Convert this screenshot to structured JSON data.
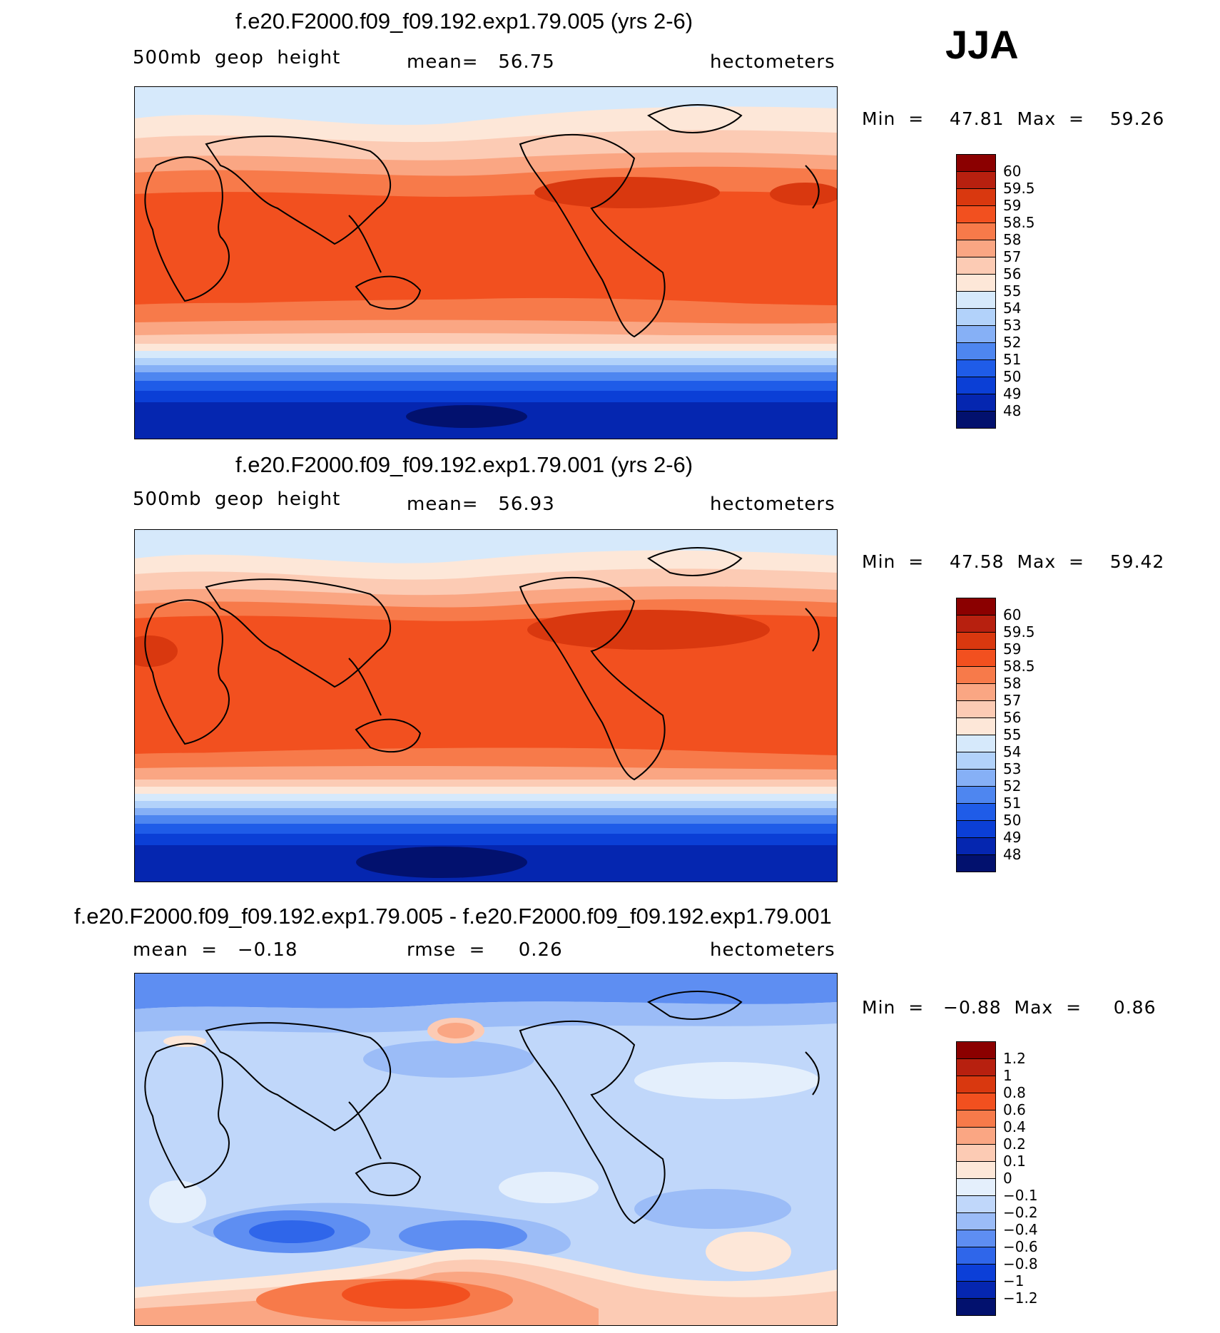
{
  "season": "JJA",
  "panels": [
    {
      "title": "f.e20.F2000.f09_f09.192.exp1.79.005 (yrs 2-6)",
      "subtitle_left": "500mb  geop  height",
      "subtitle_center": "mean=   56.75",
      "units": "hectometers",
      "min_max": "Min  =    47.81  Max  =    59.26",
      "colorbar": {
        "labels": [
          "60",
          "59.5",
          "59",
          "58.5",
          "58",
          "57",
          "56",
          "55",
          "54",
          "53",
          "52",
          "51",
          "50",
          "49",
          "48"
        ],
        "colors": [
          "#8b0000",
          "#b7200f",
          "#d9380f",
          "#f2501f",
          "#f77a4a",
          "#faa683",
          "#fccbb4",
          "#fde7d8",
          "#d6e9fb",
          "#b2d2fa",
          "#86b0f6",
          "#4e86f0",
          "#1f5ce8",
          "#0b3fd6",
          "#0526b0",
          "#02116e"
        ]
      }
    },
    {
      "title": "f.e20.F2000.f09_f09.192.exp1.79.001 (yrs 2-6)",
      "subtitle_left": "500mb  geop  height",
      "subtitle_center": "mean=   56.93",
      "units": "hectometers",
      "min_max": "Min  =    47.58  Max  =    59.42",
      "colorbar": {
        "labels": [
          "60",
          "59.5",
          "59",
          "58.5",
          "58",
          "57",
          "56",
          "55",
          "54",
          "53",
          "52",
          "51",
          "50",
          "49",
          "48"
        ],
        "colors": [
          "#8b0000",
          "#b7200f",
          "#d9380f",
          "#f2501f",
          "#f77a4a",
          "#faa683",
          "#fccbb4",
          "#fde7d8",
          "#d6e9fb",
          "#b2d2fa",
          "#86b0f6",
          "#4e86f0",
          "#1f5ce8",
          "#0b3fd6",
          "#0526b0",
          "#02116e"
        ]
      }
    },
    {
      "title": "f.e20.F2000.f09_f09.192.exp1.79.005 - f.e20.F2000.f09_f09.192.exp1.79.001",
      "subtitle_left": "mean  =   −0.18",
      "subtitle_center": "rmse  =     0.26",
      "units": "hectometers",
      "min_max": "Min  =   −0.88  Max  =     0.86",
      "colorbar": {
        "labels": [
          "1.2",
          "1",
          "0.8",
          "0.6",
          "0.4",
          "0.2",
          "0.1",
          "0",
          "−0.1",
          "−0.2",
          "−0.4",
          "−0.6",
          "−0.8",
          "−1",
          "−1.2"
        ],
        "colors": [
          "#8b0000",
          "#b7200f",
          "#d9380f",
          "#f2501f",
          "#f77a4a",
          "#faa683",
          "#fccbb4",
          "#fde7d8",
          "#e4effc",
          "#c0d7fa",
          "#9bbcf7",
          "#5e8ef2",
          "#2f66ea",
          "#0c3fd8",
          "#0526b0",
          "#02116e"
        ]
      }
    }
  ]
}
